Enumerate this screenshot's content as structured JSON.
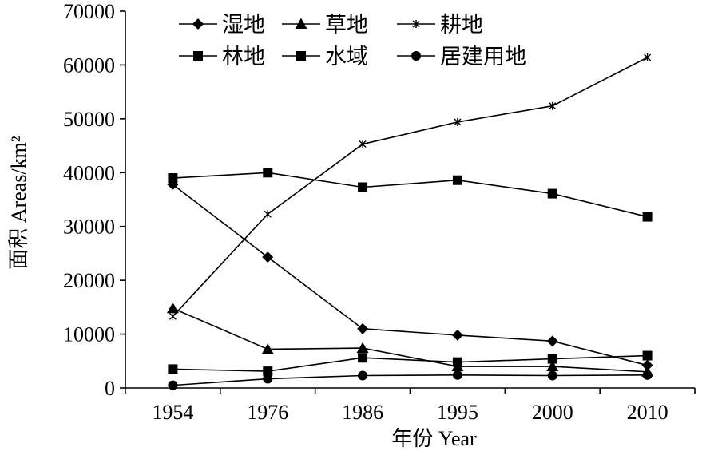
{
  "chart_data": {
    "type": "line",
    "categories": [
      "1954",
      "1976",
      "1986",
      "1995",
      "2000",
      "2010"
    ],
    "ylim": [
      0,
      70000
    ],
    "yticks": [
      0,
      10000,
      20000,
      30000,
      40000,
      50000,
      60000,
      70000
    ],
    "ytick_labels": [
      "0",
      "10000",
      "20000",
      "30000",
      "40000",
      "50000",
      "60000",
      "70000"
    ],
    "xlabel": "年份 Year",
    "ylabel": "面积 Areas/km²",
    "grid": false,
    "legend_position": "top",
    "series": [
      {
        "name": "湿地",
        "marker": "diamond",
        "values": [
          37800,
          24300,
          11000,
          9800,
          8700,
          4200
        ]
      },
      {
        "name": "草地",
        "marker": "triangle",
        "values": [
          14800,
          7200,
          7400,
          4000,
          4000,
          3000
        ]
      },
      {
        "name": "耕地",
        "marker": "star",
        "values": [
          13300,
          32300,
          45300,
          49400,
          52400,
          61400
        ]
      },
      {
        "name": "林地",
        "marker": "square",
        "values": [
          39000,
          40000,
          37300,
          38600,
          36100,
          31800
        ]
      },
      {
        "name": "水域",
        "marker": "square",
        "values": [
          3500,
          3100,
          5600,
          4800,
          5400,
          6000
        ]
      },
      {
        "name": "居建用地",
        "marker": "circle",
        "values": [
          500,
          1700,
          2300,
          2400,
          2300,
          2400
        ]
      }
    ]
  }
}
